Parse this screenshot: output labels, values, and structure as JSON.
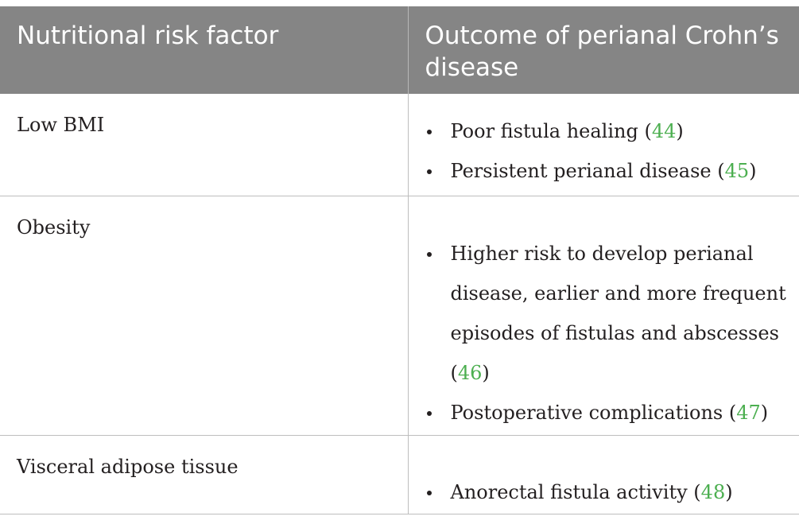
{
  "header": {
    "col1": "Nutritional risk factor",
    "col2": "Outcome of perianal Crohn’s disease"
  },
  "rows": [
    {
      "factor": "Low BMI",
      "outcomes": [
        {
          "text": "Poor fistula healing",
          "ref": "44"
        },
        {
          "text": "Persistent perianal disease",
          "ref": "45"
        }
      ]
    },
    {
      "factor": "Obesity",
      "outcomes": [
        {
          "text": "Higher risk to develop perianal disease, earlier and more frequent episodes of fistulas and abscesses",
          "ref": "46"
        },
        {
          "text": "Postoperative complications",
          "ref": "47"
        }
      ]
    },
    {
      "factor": "Visceral adipose tissue",
      "outcomes": [
        {
          "text": "Anorectal fistula activity",
          "ref": "48"
        }
      ]
    }
  ],
  "colors": {
    "header_bg": "#858585",
    "header_text": "#ffffff",
    "ref_link": "#4caf50",
    "grid": "#bdbdbd"
  }
}
